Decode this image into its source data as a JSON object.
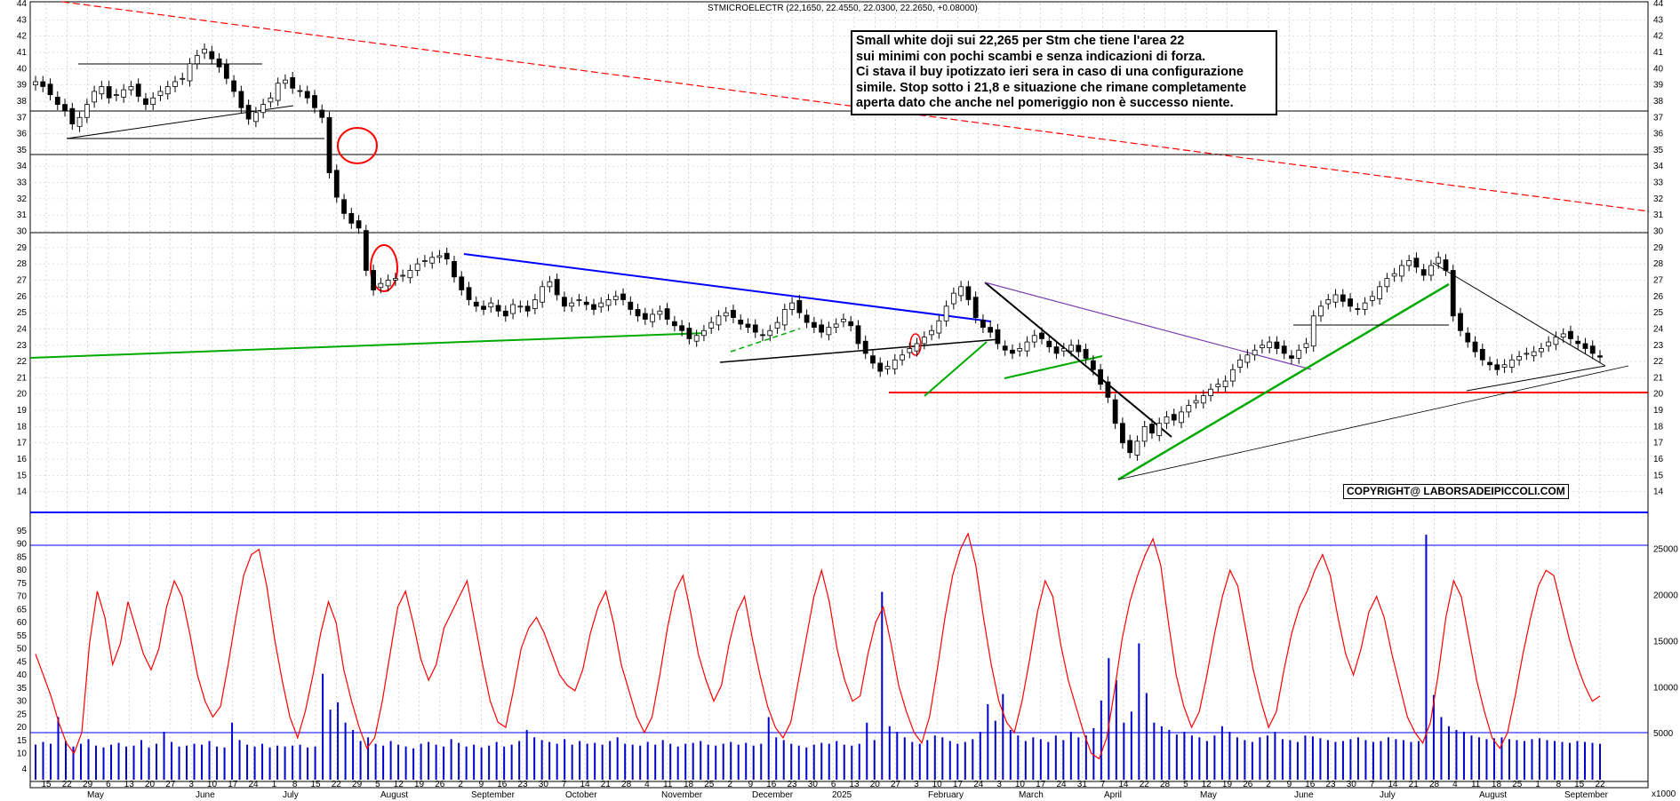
{
  "header": {
    "instrument_line": "STMICROELECTR (22,1650, 22.4550, 22.0300, 22.2650, +0.08000)"
  },
  "annotation": {
    "lines": [
      "Small white doji sui 22,265 per Stm che tiene l'area 22",
      "sui minimi con pochi scambi e senza indicazioni di forza.",
      "Ci stava il buy ipotizzato ieri sera in caso di una configurazione",
      "simile. Stop sotto i 21,8 e situazione che rimane completamente",
      "aperta dato che anche nel pomeriggio non è successo niente."
    ]
  },
  "copyright": "COPYRIGHT@ LABORSADEIPICCOLI.COM",
  "volume_unit": "x1000",
  "colors": {
    "candle_up": "#ffffff",
    "candle_down": "#000000",
    "rsi": "#ff0000",
    "volume": "#0000cc",
    "resistance": "#ff0000",
    "support": "#00aa00",
    "trend_blue": "#0000ff",
    "trend_purple": "#7a3fb0"
  },
  "chart_data": [
    {
      "type": "candlestick",
      "title": "STMICROELECTR (22,1650, 22.4550, 22.0300, 22.2650, +0.08000)",
      "ylim": [
        13,
        44
      ],
      "y_ticks": [
        14,
        15,
        16,
        17,
        18,
        19,
        20,
        21,
        22,
        23,
        24,
        25,
        26,
        27,
        28,
        29,
        30,
        31,
        32,
        33,
        34,
        35,
        36,
        37,
        38,
        39,
        40,
        41,
        42,
        43,
        44
      ],
      "x_day_labels": [
        "15",
        "22",
        "29",
        "6",
        "13",
        "20",
        "27",
        "3",
        "10",
        "17",
        "24",
        "1",
        "8",
        "15",
        "22",
        "29",
        "5",
        "12",
        "19",
        "26",
        "2",
        "9",
        "16",
        "23",
        "30",
        "7",
        "14",
        "21",
        "28",
        "4",
        "11",
        "18",
        "25",
        "2",
        "9",
        "16",
        "23",
        "30",
        "6",
        "13",
        "20",
        "27",
        "3",
        "10",
        "17",
        "24",
        "3",
        "10",
        "17",
        "24",
        "31",
        "7",
        "14",
        "22",
        "28",
        "5",
        "12",
        "19",
        "26",
        "2",
        "9",
        "16",
        "23",
        "30",
        "7",
        "14",
        "21",
        "28",
        "4",
        "11",
        "18",
        "25",
        "1",
        "8",
        "15",
        "22"
      ],
      "x_month_labels": [
        "May",
        "June",
        "July",
        "August",
        "September",
        "October",
        "November",
        "December",
        "2025",
        "February",
        "March",
        "April",
        "May",
        "June",
        "July",
        "August",
        "September"
      ],
      "close_series": [
        39.2,
        38.9,
        38.4,
        37.8,
        37.4,
        36.6,
        37.0,
        37.8,
        38.6,
        38.9,
        38.2,
        38.4,
        38.7,
        38.9,
        38.3,
        37.8,
        38.2,
        38.6,
        38.9,
        39.2,
        39.4,
        40.3,
        40.8,
        41.2,
        40.6,
        40.1,
        39.4,
        38.6,
        37.6,
        36.9,
        37.3,
        37.8,
        38.2,
        39.1,
        39.3,
        38.8,
        38.6,
        38.2,
        37.6,
        37.0,
        33.6,
        32.1,
        31.1,
        30.5,
        30.2,
        27.6,
        26.4,
        26.8,
        27.0,
        27.1,
        27.3,
        27.6,
        28.0,
        28.2,
        28.4,
        28.5,
        28.3,
        27.2,
        26.4,
        25.8,
        25.4,
        25.2,
        25.6,
        25.1,
        24.8,
        25.5,
        25.4,
        25.1,
        25.8,
        26.6,
        26.9,
        26.1,
        25.4,
        25.6,
        25.8,
        25.5,
        25.2,
        25.6,
        25.8,
        26.0,
        25.8,
        25.2,
        24.8,
        24.6,
        24.9,
        25.1,
        24.6,
        24.2,
        23.9,
        23.4,
        23.6,
        23.9,
        24.4,
        24.8,
        25.0,
        24.7,
        24.3,
        24.1,
        23.8,
        23.6,
        23.9,
        24.4,
        25.2,
        25.6,
        25.0,
        24.4,
        24.1,
        23.8,
        24.1,
        24.3,
        24.6,
        24.2,
        23.1,
        22.5,
        21.9,
        21.4,
        21.7,
        22.1,
        22.4,
        22.8,
        23.1,
        23.5,
        23.9,
        24.5,
        25.4,
        26.2,
        26.6,
        25.8,
        24.7,
        24.1,
        23.8,
        23.1,
        22.7,
        22.5,
        22.8,
        23.2,
        23.6,
        23.4,
        22.9,
        22.5,
        22.8,
        23.0,
        22.6,
        22.2,
        21.5,
        20.6,
        19.8,
        18.2,
        17.0,
        16.4,
        17.1,
        18.0,
        17.6,
        18.2,
        18.6,
        18.4,
        18.9,
        19.3,
        19.6,
        19.9,
        20.3,
        20.6,
        20.8,
        21.5,
        22.1,
        22.4,
        22.7,
        23.0,
        23.2,
        22.8,
        22.5,
        22.2,
        22.7,
        23.1,
        24.8,
        25.4,
        25.8,
        26.1,
        25.7,
        25.4,
        25.2,
        25.6,
        26.0,
        26.6,
        27.1,
        27.4,
        27.9,
        28.2,
        27.8,
        27.3,
        27.9,
        28.4,
        27.6,
        24.8,
        23.9,
        23.2,
        22.6,
        22.1,
        21.8,
        21.5,
        21.8,
        22.1,
        22.3,
        22.5,
        22.6,
        22.8,
        23.2,
        23.5,
        23.7,
        23.4,
        23.1,
        22.8,
        22.5,
        22.27
      ]
    },
    {
      "type": "line",
      "title": "",
      "ylim": [
        0,
        95
      ],
      "y_ticks": [
        4,
        10,
        15,
        20,
        25,
        30,
        35,
        40,
        45,
        50,
        55,
        60,
        65,
        70,
        75,
        80,
        85,
        90,
        95
      ],
      "series": [
        {
          "values": [
            48,
            40,
            32,
            22,
            14,
            10,
            18,
            52,
            72,
            62,
            44,
            52,
            68,
            58,
            48,
            42,
            50,
            66,
            76,
            70,
            56,
            40,
            30,
            24,
            28,
            44,
            62,
            78,
            86,
            88,
            74,
            54,
            38,
            24,
            16,
            26,
            40,
            56,
            68,
            60,
            42,
            30,
            20,
            12,
            16,
            30,
            48,
            66,
            72,
            60,
            46,
            38,
            44,
            58,
            64,
            70,
            76,
            60,
            44,
            30,
            22,
            20,
            34,
            50,
            58,
            62,
            56,
            48,
            40,
            36,
            34,
            42,
            56,
            66,
            72,
            60,
            44,
            34,
            24,
            18,
            24,
            40,
            58,
            72,
            78,
            64,
            48,
            38,
            30,
            36,
            52,
            64,
            70,
            54,
            40,
            28,
            20,
            16,
            22,
            38,
            54,
            70,
            80,
            68,
            50,
            38,
            30,
            32,
            48,
            60,
            66,
            52,
            36,
            26,
            18,
            14,
            24,
            42,
            62,
            78,
            88,
            94,
            82,
            62,
            44,
            30,
            22,
            18,
            30,
            46,
            64,
            76,
            70,
            52,
            38,
            28,
            18,
            10,
            8,
            16,
            34,
            54,
            68,
            78,
            86,
            92,
            82,
            60,
            40,
            28,
            20,
            26,
            40,
            56,
            70,
            80,
            74,
            58,
            42,
            30,
            20,
            26,
            42,
            56,
            66,
            72,
            80,
            86,
            78,
            62,
            48,
            40,
            50,
            64,
            70,
            62,
            48,
            36,
            24,
            18,
            14,
            22,
            40,
            62,
            76,
            70,
            54,
            38,
            26,
            16,
            12,
            18,
            32,
            48,
            62,
            74,
            80,
            78,
            66,
            54,
            44,
            36,
            30,
            32
          ]
        }
      ]
    },
    {
      "type": "bar",
      "title": "",
      "ylim": [
        0,
        27000
      ],
      "y_ticks": [
        5000,
        10000,
        15000,
        20000,
        25000
      ],
      "values": [
        3800,
        4100,
        3900,
        6800,
        4200,
        3600,
        3900,
        4400,
        3700,
        3500,
        3800,
        4000,
        3600,
        3700,
        4300,
        3500,
        3900,
        5200,
        4100,
        3600,
        3700,
        3900,
        3800,
        4200,
        3600,
        3500,
        6200,
        4300,
        3800,
        3600,
        3900,
        3500,
        3700,
        3600,
        3700,
        3800,
        3500,
        3600,
        11500,
        7600,
        8400,
        6200,
        5400,
        4200,
        4600,
        3900,
        3700,
        4200,
        3800,
        3600,
        3400,
        3900,
        4100,
        3800,
        3600,
        4400,
        4000,
        3600,
        3800,
        3500,
        3700,
        4100,
        3600,
        3800,
        4200,
        5400,
        4600,
        4300,
        4100,
        3900,
        4400,
        3800,
        4200,
        3900,
        4000,
        3800,
        4200,
        4600,
        3900,
        3800,
        3700,
        4100,
        3800,
        4300,
        3900,
        3600,
        3900,
        4000,
        4200,
        3800,
        3700,
        3900,
        4100,
        3800,
        4000,
        3700,
        3900,
        6800,
        4600,
        4300,
        3900,
        3700,
        3500,
        3800,
        4000,
        3900,
        4200,
        3800,
        3700,
        3900,
        6200,
        4300,
        20400,
        5800,
        5200,
        4600,
        4100,
        3900,
        4300,
        4800,
        4600,
        4200,
        3900,
        4100,
        4400,
        5200,
        8200,
        6400,
        9300,
        5400,
        4800,
        4200,
        4600,
        4400,
        4100,
        4800,
        4300,
        5200,
        4600,
        4800,
        5600,
        8600,
        13200,
        10800,
        6200,
        7400,
        14800,
        9400,
        6200,
        5800,
        5400,
        4900,
        5200,
        4800,
        4600,
        4200,
        4800,
        5800,
        5200,
        4600,
        4300,
        4100,
        4600,
        4800,
        5200,
        4400,
        4300,
        4100,
        4800,
        4700,
        4500,
        4300,
        4100,
        4200,
        4400,
        4600,
        4300,
        4100,
        4200,
        4600,
        4400,
        4300,
        4100,
        4200,
        26600,
        9200,
        6800,
        5800,
        5400,
        5200,
        4800,
        4600,
        4400,
        4500,
        4600,
        4400,
        4300,
        4200,
        4400,
        4500,
        4300,
        4200,
        4100,
        4000,
        4200,
        4100,
        4000,
        3900
      ]
    }
  ]
}
